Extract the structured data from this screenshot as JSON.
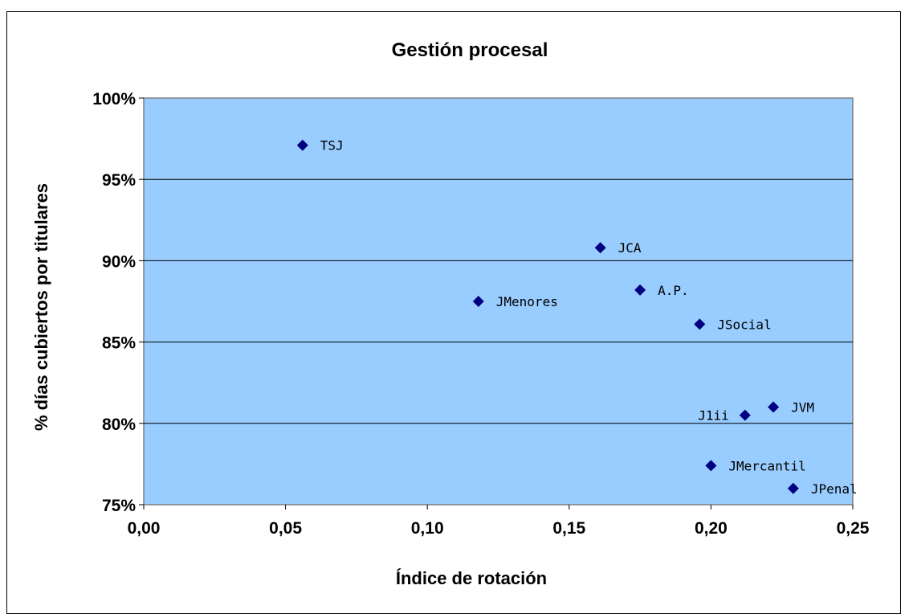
{
  "chart_data": {
    "type": "scatter",
    "title": "Gestión procesal",
    "xlabel": "Índice de rotación",
    "ylabel": "% días cubiertos por titulares",
    "xlim": [
      0,
      0.25
    ],
    "ylim": [
      0.75,
      1.0
    ],
    "x_ticks": [
      "0,00",
      "0,05",
      "0,10",
      "0,15",
      "0,20",
      "0,25"
    ],
    "y_ticks": [
      "75%",
      "80%",
      "85%",
      "90%",
      "95%",
      "100%"
    ],
    "grid": "horizontal",
    "legend": "none",
    "colors": {
      "plot_background": "#99CCFF",
      "marker": "#000080",
      "grid": "#000000"
    },
    "points": [
      {
        "label": "TSJ",
        "x": 0.056,
        "y": 0.971
      },
      {
        "label": "JCA",
        "x": 0.161,
        "y": 0.908
      },
      {
        "label": "A.P.",
        "x": 0.175,
        "y": 0.882
      },
      {
        "label": "JMenores",
        "x": 0.118,
        "y": 0.875
      },
      {
        "label": "JSocial",
        "x": 0.196,
        "y": 0.861
      },
      {
        "label": "JVM",
        "x": 0.222,
        "y": 0.81
      },
      {
        "label": "J1ii",
        "x": 0.212,
        "y": 0.805
      },
      {
        "label": "JMercantil",
        "x": 0.2,
        "y": 0.774
      },
      {
        "label": "JPenal",
        "x": 0.229,
        "y": 0.76
      }
    ]
  }
}
